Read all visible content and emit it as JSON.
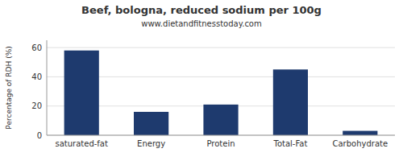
{
  "chart_data": {
    "type": "bar",
    "title": "Beef, bologna, reduced sodium per 100g",
    "subtitle": "www.dietandfitnesstoday.com",
    "categories": [
      "saturated-fat",
      "Energy",
      "Protein",
      "Total-Fat",
      "Carbohydrate"
    ],
    "values": [
      58,
      16,
      21,
      45,
      3
    ],
    "color": "#1e3a6e",
    "ylabel": "Percentage of RDH (%)",
    "ylim": [
      0,
      65
    ],
    "yticks": [
      0,
      20,
      40,
      60
    ],
    "grid": true
  }
}
